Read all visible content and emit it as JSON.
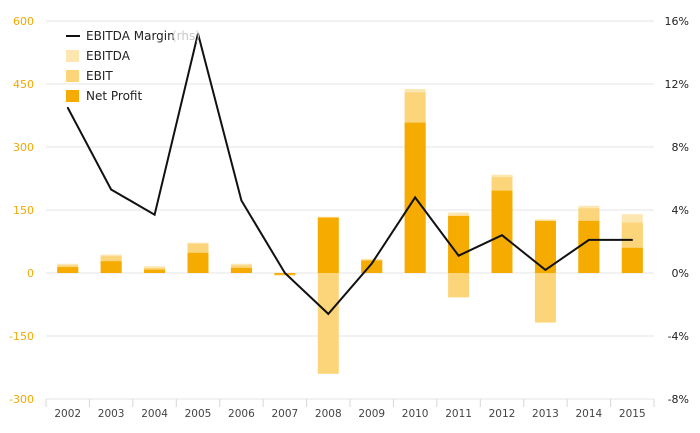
{
  "chart_data": {
    "type": "bar",
    "categories": [
      "2002",
      "2003",
      "2004",
      "2005",
      "2006",
      "2007",
      "2008",
      "2009",
      "2010",
      "2011",
      "2012",
      "2013",
      "2014",
      "2015"
    ],
    "series": [
      {
        "name": "EBITDA",
        "kind": "bar",
        "axis": "left",
        "color": "#fde6b0",
        "values": [
          22,
          44,
          16,
          72,
          22,
          -6,
          134,
          34,
          438,
          144,
          234,
          128,
          160,
          140
        ]
      },
      {
        "name": "EBIT",
        "kind": "bar",
        "axis": "left",
        "color": "#fcd57a",
        "values": [
          18,
          40,
          12,
          70,
          18,
          -6,
          -240,
          30,
          430,
          -58,
          228,
          -118,
          154,
          120
        ]
      },
      {
        "name": "Net Profit",
        "kind": "bar",
        "axis": "left",
        "color": "#f5ab00",
        "values": [
          14,
          28,
          8,
          48,
          12,
          -4,
          132,
          30,
          358,
          136,
          196,
          124,
          124,
          60
        ]
      },
      {
        "name": "EBITDA Margin",
        "kind": "line",
        "axis": "right",
        "color": "#111111",
        "legend_label": "EBITDA Margin",
        "legend_suffix": "(rhs)",
        "values": [
          10.5,
          5.3,
          3.7,
          15.2,
          4.6,
          0.0,
          -2.6,
          0.6,
          4.8,
          1.1,
          2.4,
          0.2,
          2.1,
          2.1
        ]
      }
    ],
    "left_axis": {
      "ticks": [
        "600",
        "450",
        "300",
        "150",
        "0",
        "-150",
        "-300"
      ],
      "ylim": [
        -300,
        600
      ]
    },
    "right_axis": {
      "ticks": [
        "16%",
        "12%",
        "8%",
        "4%",
        "0%",
        "-4%",
        "-8%"
      ],
      "ylim": [
        -8,
        16
      ]
    },
    "legend_position": "top-left",
    "grid": true,
    "title": "",
    "xlabel": "",
    "ylabel": ""
  }
}
